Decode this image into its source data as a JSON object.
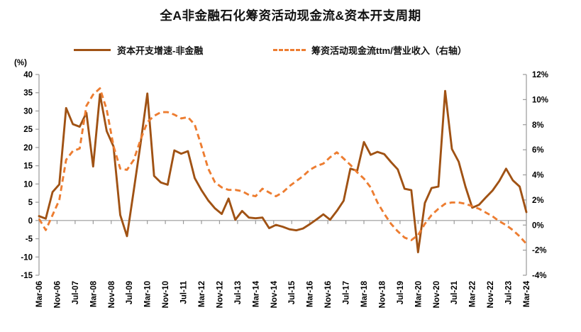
{
  "title": "全A非金融石化筹资活动现金流&资本开支周期",
  "legend": {
    "items": [
      {
        "label": "资本开支增速-非金融",
        "style": "solid",
        "color": "#A05214"
      },
      {
        "label": "筹资活动现金流ttm/营业收入（右轴）",
        "style": "dashed",
        "color": "#ED7D31"
      }
    ]
  },
  "colors": {
    "background": "#FFFFFF",
    "axis": "#9A9A9A",
    "text": "#000000",
    "series_solid": "#A05214",
    "series_dashed": "#ED7D31"
  },
  "chart_data": {
    "type": "line",
    "title": "全A非金融石化筹资活动现金流&资本开支周期",
    "x_start": "Mar-06",
    "x_end": "Mar-24",
    "x_step_months": 3,
    "x_tick_labels": [
      "Mar-06",
      "Nov-06",
      "Jul-07",
      "Mar-08",
      "Nov-08",
      "Jul-09",
      "Mar-10",
      "Nov-10",
      "Jul-11",
      "Mar-12",
      "Nov-12",
      "Jul-13",
      "Mar-14",
      "Nov-14",
      "Jul-15",
      "Mar-16",
      "Nov-16",
      "Jul-17",
      "Mar-18",
      "Nov-18",
      "Jul-19",
      "Mar-20",
      "Nov-20",
      "Jul-21",
      "Mar-22",
      "Nov-22",
      "Jul-23",
      "Mar-24"
    ],
    "left_axis": {
      "unit_label": "(%)",
      "ticks": [
        40,
        35,
        30,
        25,
        20,
        15,
        10,
        5,
        0,
        -5,
        -10,
        -15
      ],
      "range": [
        -15,
        40
      ]
    },
    "right_axis": {
      "ticks": [
        "12%",
        "10%",
        "8%",
        "6%",
        "4%",
        "2%",
        "0%",
        "-2%",
        "-4%"
      ],
      "range": [
        -4,
        12
      ]
    },
    "legend_position": "top",
    "grid": false,
    "series": [
      {
        "name": "资本开支增速-非金融",
        "axis": "left",
        "line": "solid",
        "color": "#A05214",
        "values": [
          1.2,
          0.5,
          7.8,
          9.9,
          30.8,
          26.4,
          25.7,
          29.5,
          14.8,
          34.6,
          24.5,
          20.3,
          1.5,
          -4.3,
          8.3,
          21.0,
          34.8,
          12.2,
          10.4,
          9.8,
          19.2,
          18.3,
          19.0,
          11.6,
          8.3,
          5.5,
          3.3,
          1.8,
          6.0,
          0.2,
          2.6,
          0.8,
          0.6,
          0.8,
          -2.1,
          -1.2,
          -1.7,
          -2.4,
          -2.7,
          -2.2,
          -1.0,
          0.3,
          1.7,
          0.2,
          2.6,
          5.4,
          14.2,
          13.6,
          21.5,
          18.0,
          18.8,
          18.2,
          16.0,
          14.0,
          8.7,
          8.3,
          -8.7,
          4.8,
          8.9,
          9.3,
          35.5,
          19.6,
          16.1,
          9.3,
          3.5,
          4.3,
          6.3,
          8.2,
          10.8,
          14.2,
          11.0,
          9.3,
          2.3
        ]
      },
      {
        "name": "筹资活动现金流ttm/营业收入（右轴）",
        "axis": "right",
        "line": "dashed",
        "color": "#ED7D31",
        "values": [
          0.5,
          -0.4,
          0.8,
          2.0,
          5.2,
          5.9,
          6.1,
          9.5,
          10.4,
          10.9,
          9.2,
          6.3,
          4.5,
          4.4,
          5.2,
          6.8,
          8.2,
          8.7,
          9.0,
          9.0,
          8.8,
          8.5,
          8.6,
          8.0,
          6.3,
          4.5,
          3.4,
          3.0,
          2.8,
          2.8,
          2.7,
          2.4,
          2.3,
          2.9,
          2.6,
          2.3,
          2.6,
          3.1,
          3.5,
          3.9,
          4.4,
          4.7,
          4.9,
          5.4,
          5.8,
          5.3,
          4.8,
          4.2,
          3.7,
          3.0,
          1.8,
          0.9,
          0.1,
          -0.5,
          -1.0,
          -1.2,
          -0.8,
          0.1,
          0.8,
          1.3,
          1.7,
          1.8,
          1.8,
          1.7,
          1.5,
          1.3,
          1.0,
          0.7,
          0.3,
          0.0,
          -0.4,
          -0.9,
          -1.5
        ]
      }
    ]
  }
}
